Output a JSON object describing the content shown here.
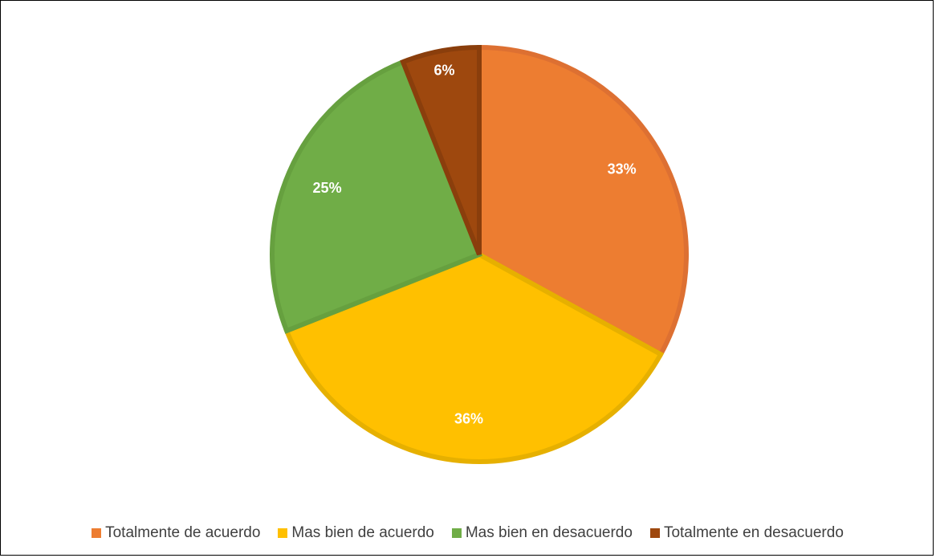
{
  "chart_data": {
    "type": "pie",
    "categories": [
      "Totalmente de acuerdo",
      "Mas bien de acuerdo",
      "Mas bien en desacuerdo",
      "Totalmente en desacuerdo"
    ],
    "values": [
      33,
      36,
      25,
      6
    ],
    "data_labels": [
      "33%",
      "36%",
      "25%",
      "6%"
    ],
    "colors": [
      "#ED7D31",
      "#FFC000",
      "#70AD47",
      "#9E480E"
    ],
    "edge_colors": [
      "#DD7032",
      "#E6B000",
      "#66A03F",
      "#8A3E0C"
    ],
    "legend_position": "bottom"
  }
}
